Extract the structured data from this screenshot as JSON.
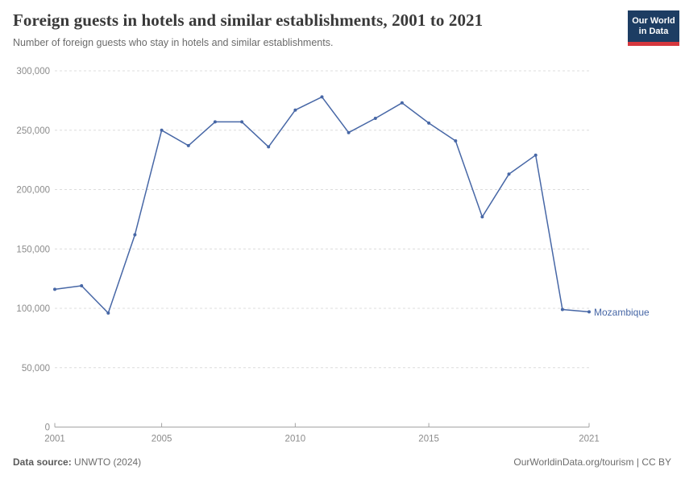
{
  "header": {
    "title": "Foreign guests in hotels and similar establishments, 2001 to 2021",
    "subtitle": "Number of foreign guests who stay in hotels and similar establishments.",
    "logo_line1": "Our World",
    "logo_line2": "in Data"
  },
  "chart_data": {
    "type": "line",
    "title": "Foreign guests in hotels and similar establishments, 2001 to 2021",
    "xlabel": "",
    "ylabel": "",
    "xlim": [
      2001,
      2021
    ],
    "ylim": [
      0,
      300000
    ],
    "yticks": [
      0,
      50000,
      100000,
      150000,
      200000,
      250000,
      300000
    ],
    "xticks": [
      2001,
      2005,
      2010,
      2015,
      2021
    ],
    "grid": true,
    "legend_position": "end-of-line",
    "series": [
      {
        "name": "Mozambique",
        "color": "#4767a6",
        "x": [
          2001,
          2002,
          2003,
          2004,
          2005,
          2006,
          2007,
          2008,
          2009,
          2010,
          2011,
          2012,
          2013,
          2014,
          2015,
          2016,
          2017,
          2018,
          2019,
          2020,
          2021
        ],
        "values": [
          116000,
          119000,
          96000,
          162000,
          250000,
          237000,
          257000,
          257000,
          236000,
          267000,
          278000,
          248000,
          260000,
          273000,
          256000,
          241000,
          177000,
          213000,
          229000,
          99000,
          97000
        ]
      }
    ]
  },
  "footer": {
    "source_label": "Data source:",
    "source_value": "UNWTO (2024)",
    "credit": "OurWorldinData.org/tourism | CC BY"
  },
  "colors": {
    "line": "#4767a6",
    "grid": "#dcdcdc",
    "axis": "#a3a3a3",
    "tick_text": "#8b8b8b",
    "title": "#393939",
    "subtitle": "#6b6b6b",
    "logo_bg": "#1d3d63",
    "logo_red": "#d6373e"
  }
}
